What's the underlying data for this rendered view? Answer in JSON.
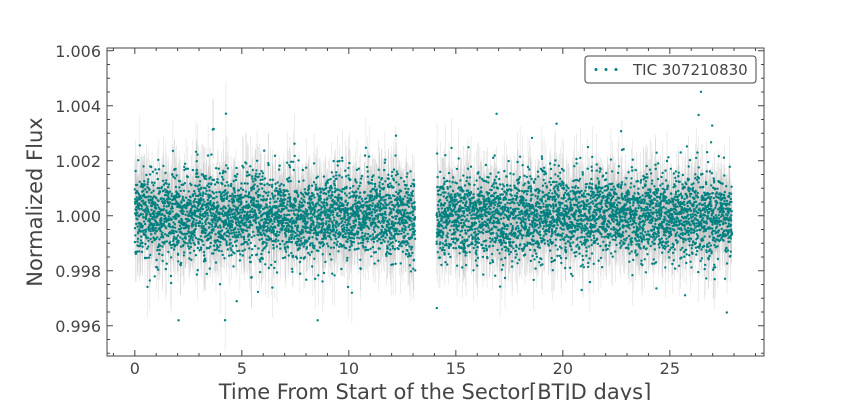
{
  "chart_data": {
    "type": "scatter",
    "xlabel": "Time From Start of the Sector[BTJD days]",
    "ylabel": "Normalized Flux",
    "xlim": [
      -1.3,
      29.4
    ],
    "ylim": [
      0.9949,
      1.0061
    ],
    "x_ticks": [
      0,
      5,
      10,
      15,
      20,
      25
    ],
    "x_tick_labels": [
      "0",
      "5",
      "10",
      "15",
      "20",
      "25"
    ],
    "y_ticks": [
      0.996,
      0.998,
      1.0,
      1.002,
      1.004,
      1.006
    ],
    "y_tick_labels": [
      "0.996",
      "0.998",
      "1.000",
      "1.002",
      "1.004",
      "1.006"
    ],
    "grid": false,
    "legend_position": "top-right",
    "series": [
      {
        "name": "TIC 307210830",
        "color": "#008080",
        "errorbar_color": "#bbbbbb",
        "segments": [
          {
            "x_start": 0.0,
            "x_end": 13.1,
            "count": 3400
          },
          {
            "x_start": 14.1,
            "x_end": 27.9,
            "count": 3600
          }
        ],
        "flux_median": 1.0,
        "flux_scatter": 0.00078,
        "flux_error": 0.0011,
        "flux_min": 0.9962,
        "flux_max": 1.0048
      }
    ]
  }
}
